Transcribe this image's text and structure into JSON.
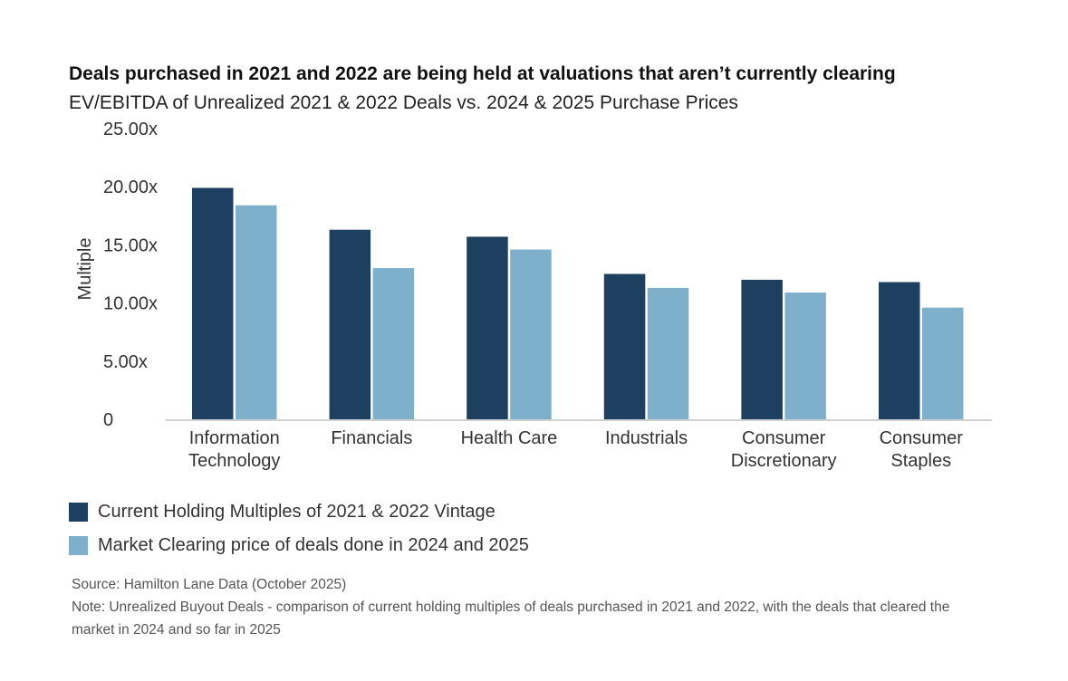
{
  "chart_data": {
    "type": "bar",
    "title": "Deals purchased in 2021 and 2022 are being held at valuations that aren’t currently clearing",
    "subtitle": "EV/EBITDA of Unrealized 2021 & 2022 Deals vs. 2024 & 2025 Purchase Prices",
    "ylabel": "Multiple",
    "xlabel": "",
    "ylim": [
      0,
      25
    ],
    "yticks": [
      {
        "value": 0,
        "label": "0"
      },
      {
        "value": 5,
        "label": "5.00x"
      },
      {
        "value": 10,
        "label": "10.00x"
      },
      {
        "value": 15,
        "label": "15.00x"
      },
      {
        "value": 20,
        "label": "20.00x"
      },
      {
        "value": 25,
        "label": "25.00x"
      }
    ],
    "categories": [
      [
        "Information",
        "Technology"
      ],
      [
        "Financials"
      ],
      [
        "Health Care"
      ],
      [
        "Industrials"
      ],
      [
        "Consumer",
        "Discretionary"
      ],
      [
        "Consumer",
        "Staples"
      ]
    ],
    "series": [
      {
        "name": "Current Holding Multiples of 2021 & 2022 Vintage",
        "color": "#1d3f60",
        "values": [
          19.9,
          16.3,
          15.7,
          12.5,
          12.0,
          11.8
        ]
      },
      {
        "name": "Market Clearing price of deals done in 2024 and 2025",
        "color": "#7eb0cc",
        "values": [
          18.4,
          13.0,
          14.6,
          11.3,
          10.9,
          9.6
        ]
      }
    ],
    "grid": false,
    "legend": "bottom-left"
  },
  "footer": {
    "source": "Source: Hamilton Lane Data (October 2025)",
    "note": "Note: Unrealized Buyout Deals - comparison of current holding multiples of deals purchased in 2021 and 2022, with the deals that cleared the market in 2024 and so far in 2025"
  }
}
